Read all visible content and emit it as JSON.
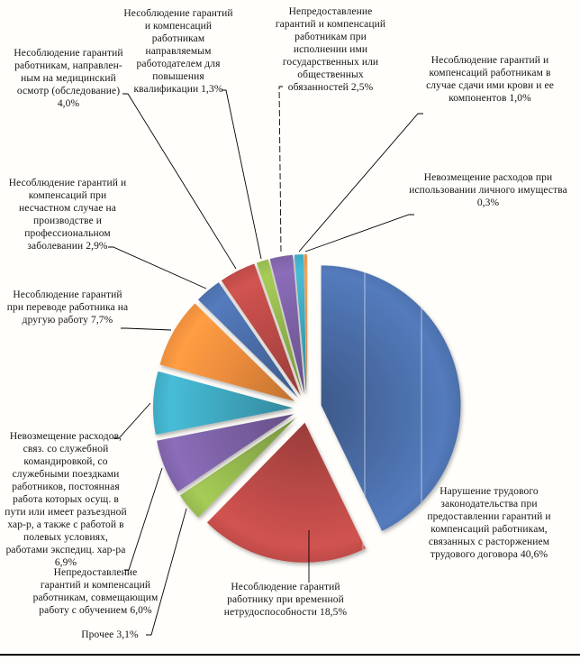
{
  "chart_data": {
    "type": "pie",
    "title": "",
    "legend": "none",
    "labels_position": "outside-with-leader-lines",
    "value_unit": "%",
    "palette": [
      "#4B6EA9",
      "#BB4A47",
      "#94B64E",
      "#7C61A5",
      "#3FA8C0",
      "#EC8C3C"
    ],
    "slices": [
      {
        "text": "Нарушение трудового законодательства при предоставлении гарантий и компенсаций работникам, связанных с расторжением трудового договора 40,6%",
        "label": "Нарушение трудового законодательства при предоставлении гарантий и компенсаций работникам, связанных с расторжением трудового договора",
        "value": 40.6,
        "value_text": "40,6%",
        "color": "#4B6EA9"
      },
      {
        "text": "Несоблюдение гарантий работнику при временной нетрудоспособности 18,5%",
        "label": "Несоблюдение гарантий работнику при временной нетрудоспособности",
        "value": 18.5,
        "value_text": "18,5%",
        "color": "#BB4A47"
      },
      {
        "text": "Прочее 3,1%",
        "label": "Прочее",
        "value": 3.1,
        "value_text": "3,1%",
        "color": "#94B64E"
      },
      {
        "text": "Непредоставление гарантий и компенсаций работникам, совмещающим работу с обучением 6,0%",
        "label": "Непредоставление гарантий и компенсаций работникам, совмещающим работу с обучением",
        "value": 6.0,
        "value_text": "6,0%",
        "color": "#7C61A5"
      },
      {
        "text": "Невозмещение расходов, связ. со служебной командировкой, со служебными поездками работников, постоянная работа которых осущ. в пути или имеет разъездной хар-р, а также с работой в полевых условиях, работами экспедиц. хар-ра 6,9%",
        "label": "Невозмещение расходов, связ. со служебной командировкой, со служебными поездками работников, постоянная работа которых осущ. в пути или имеет разъездной хар-р, а также с работой в полевых условиях, работами экспедиц. хар-ра",
        "value": 6.9,
        "value_text": "6,9%",
        "color": "#3FA8C0"
      },
      {
        "text": "Несоблюдение гарантий при переводе работника на другую работу 7,7%",
        "label": "Несоблюдение гарантий при переводе работника на другую работу",
        "value": 7.7,
        "value_text": "7,7%",
        "color": "#EC8C3C"
      },
      {
        "text": "Несоблюдение гарантий и компенсаций при несчастном случае на производстве и профессиональном заболевании 2,9%",
        "label": "Несоблюдение гарантий и компенсаций при несчастном случае на производстве и профессиональном заболевании",
        "value": 2.9,
        "value_text": "2,9%",
        "color": "#4B6EA9"
      },
      {
        "text": "Несоблюдение гарантий работникам, направлен-ным на медицинский осмотр (обследование) 4,0%",
        "label": "Несоблюдение гарантий работникам, направлен-ным на медицинский осмотр (обследование)",
        "value": 4.0,
        "value_text": "4,0%",
        "color": "#BB4A47"
      },
      {
        "text": "Несоблюдение гарантий и компенсаций работникам направляемым работодателем для повышения квалификации 1,3%",
        "label": "Несоблюдение гарантий и компенсаций работникам направляемым работодателем для повышения квалификации",
        "value": 1.3,
        "value_text": "1,3%",
        "color": "#94B64E"
      },
      {
        "text": "Непредоставление гарантий и компенсаций работникам при исполнении ими государственных или общественных обязанностей 2,5%",
        "label": "Непредоставление гарантий и компенсаций работникам при исполнении ими государственных или общественных обязанностей",
        "value": 2.5,
        "value_text": "2,5%",
        "color": "#7C61A5"
      },
      {
        "text": "Несоблюдение гарантий и компенсаций работникам в случае сдачи ими крови и ее компонентов 1,0%",
        "label": "Несоблюдение гарантий и компенсаций работникам в случае сдачи ими крови и ее компонентов",
        "value": 1.0,
        "value_text": "1,0%",
        "color": "#3FA8C0"
      },
      {
        "text": "Невозмещение расходов при использовании личного имущества 0,3%",
        "label": "Невозмещение расходов при использовании личного имущества",
        "value": 0.3,
        "value_text": "0,3%",
        "color": "#EC8C3C"
      }
    ]
  }
}
